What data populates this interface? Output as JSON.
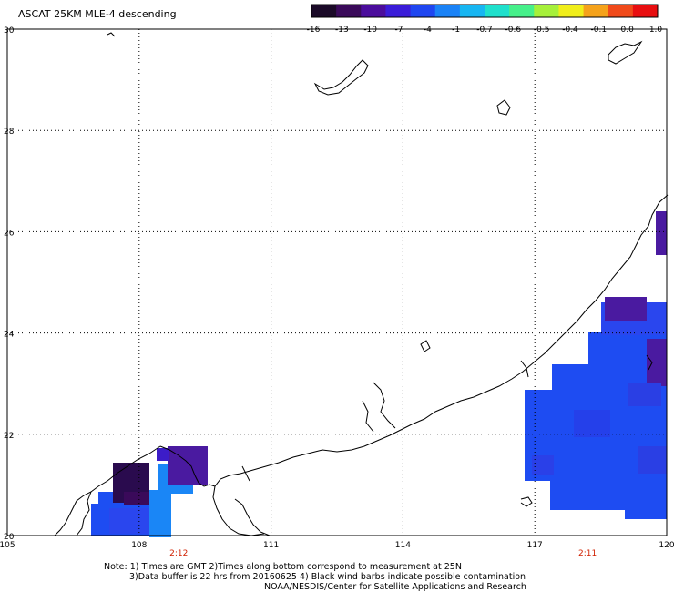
{
  "title": "ASCAT 25KM MLE-4 descending",
  "colorbar": {
    "labels": [
      "-16",
      "-13",
      "-10",
      "-7",
      "-4",
      "-1",
      "-0.7",
      "-0.6",
      "-0.5",
      "-0.4",
      "-0.1",
      "0.0",
      "1.0"
    ],
    "colors": [
      "#1b0a28",
      "#3a0a5a",
      "#4b0d9c",
      "#3a1cd8",
      "#1f46f0",
      "#1a82f6",
      "#17b6f2",
      "#1fe0cc",
      "#46f08a",
      "#a6f03a",
      "#f0ee1a",
      "#f5a21a",
      "#f04a1a",
      "#e80e10"
    ]
  },
  "map": {
    "lon_range": [
      105,
      120
    ],
    "lat_range": [
      20,
      30
    ],
    "lon_ticks": [
      "105",
      "108",
      "111",
      "114",
      "117",
      "120"
    ],
    "lat_ticks": [
      "30",
      "28",
      "26",
      "24",
      "22",
      "20"
    ],
    "grid": "dotted"
  },
  "pass_times": [
    {
      "time": "2:12",
      "lon": 108.9
    },
    {
      "time": "2:11",
      "lon": 118.2
    }
  ],
  "colors": {
    "pass_time": "#d02000",
    "coast": "#000000",
    "cell_blue": "#1e4cf2",
    "cell_purple": "#4a1aa0",
    "cell_dark": "#2a0b4e"
  },
  "notes": [
    "Note: 1) Times are GMT 2)Times along bottom correspond to measurement at 25N",
    "3)Data buffer is 22 hrs from 20160625 4) Black wind barbs indicate possible contamination",
    "NOAA/NESDIS/Center for Satellite Applications and Research"
  ],
  "data_cells": [
    {
      "lon": 107.4,
      "lat": 21.4,
      "value": -13
    },
    {
      "lon": 107.6,
      "lat": 21.1,
      "value": -13
    },
    {
      "lon": 107.4,
      "lat": 20.5,
      "value": -7
    },
    {
      "lon": 107.8,
      "lat": 20.3,
      "value": -7
    },
    {
      "lon": 108.3,
      "lat": 20.6,
      "value": -7
    },
    {
      "lon": 108.8,
      "lat": 21.4,
      "value": -10
    },
    {
      "lon": 109.3,
      "lat": 21.6,
      "value": -10
    },
    {
      "lon": 118.8,
      "lat": 24.6,
      "value": -10
    },
    {
      "lon": 119.7,
      "lat": 25.8,
      "value": -13
    },
    {
      "lon": 119.7,
      "lat": 23.4,
      "value": -13
    },
    {
      "lon": 117.5,
      "lat": 22.3,
      "value": -7
    },
    {
      "lon": 118.5,
      "lat": 21.5,
      "value": -7
    },
    {
      "lon": 119.4,
      "lat": 21.0,
      "value": -7
    }
  ]
}
